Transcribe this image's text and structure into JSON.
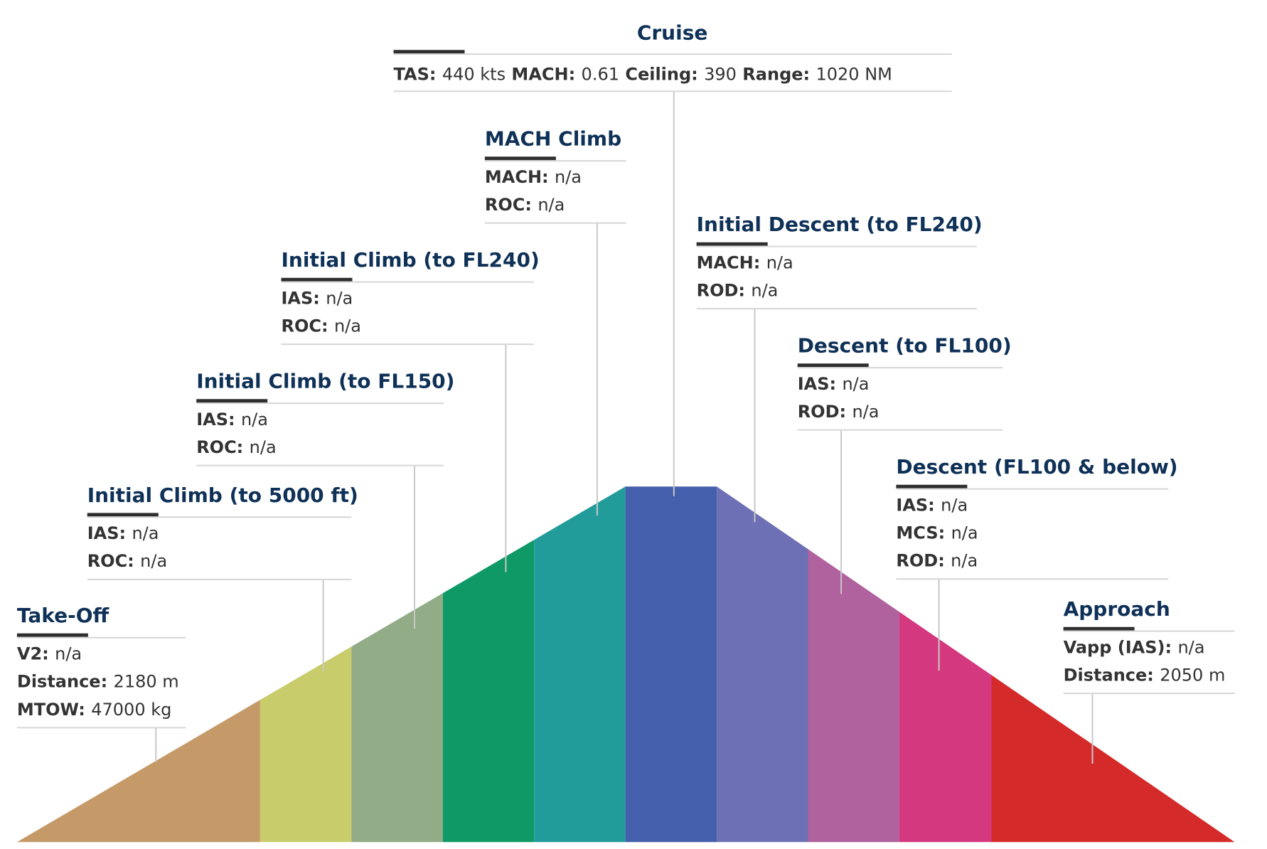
{
  "phases": [
    {
      "key": "takeoff",
      "title": "Take-Off",
      "color": "#c59a68",
      "fields": [
        {
          "label": "V2:",
          "value": "n/a"
        },
        {
          "label": "Distance:",
          "value": "2180 m"
        },
        {
          "label": "MTOW:",
          "value": "47000 kg"
        }
      ]
    },
    {
      "key": "initial-climb-5000",
      "title": "Initial Climb (to 5000 ft)",
      "color": "#c8cc6a",
      "fields": [
        {
          "label": "IAS:",
          "value": "n/a"
        },
        {
          "label": "ROC:",
          "value": "n/a"
        }
      ]
    },
    {
      "key": "initial-climb-fl150",
      "title": "Initial Climb (to FL150)",
      "color": "#91ac86",
      "fields": [
        {
          "label": "IAS:",
          "value": "n/a"
        },
        {
          "label": "ROC:",
          "value": "n/a"
        }
      ]
    },
    {
      "key": "initial-climb-fl240",
      "title": "Initial Climb (to FL240)",
      "color": "#0e9966",
      "fields": [
        {
          "label": "IAS:",
          "value": "n/a"
        },
        {
          "label": "ROC:",
          "value": "n/a"
        }
      ]
    },
    {
      "key": "mach-climb",
      "title": "MACH Climb",
      "color": "#229b9b",
      "fields": [
        {
          "label": "MACH:",
          "value": "n/a"
        },
        {
          "label": "ROC:",
          "value": "n/a"
        }
      ]
    },
    {
      "key": "cruise",
      "title": "Cruise",
      "color": "#445fab",
      "fields": [
        {
          "label": "TAS:",
          "value": "440 kts"
        },
        {
          "label": "MACH:",
          "value": "0.61"
        },
        {
          "label": "Ceiling:",
          "value": "390"
        },
        {
          "label": "Range:",
          "value": "1020 NM"
        }
      ]
    },
    {
      "key": "initial-descent-fl240",
      "title": "Initial Descent (to FL240)",
      "color": "#6d70b4",
      "fields": [
        {
          "label": "MACH:",
          "value": "n/a"
        },
        {
          "label": "ROD:",
          "value": "n/a"
        }
      ]
    },
    {
      "key": "descent-fl100",
      "title": "Descent (to FL100)",
      "color": "#af629d",
      "fields": [
        {
          "label": "IAS:",
          "value": "n/a"
        },
        {
          "label": "ROD:",
          "value": "n/a"
        }
      ]
    },
    {
      "key": "descent-fl100-below",
      "title": "Descent (FL100 & below)",
      "color": "#d4387e",
      "fields": [
        {
          "label": "IAS:",
          "value": "n/a"
        },
        {
          "label": "MCS:",
          "value": "n/a"
        },
        {
          "label": "ROD:",
          "value": "n/a"
        }
      ]
    },
    {
      "key": "approach",
      "title": "Approach",
      "color": "#d52a2a",
      "fields": [
        {
          "label": "Vapp (IAS):",
          "value": "n/a"
        },
        {
          "label": "Distance:",
          "value": "2050 m"
        }
      ]
    }
  ]
}
